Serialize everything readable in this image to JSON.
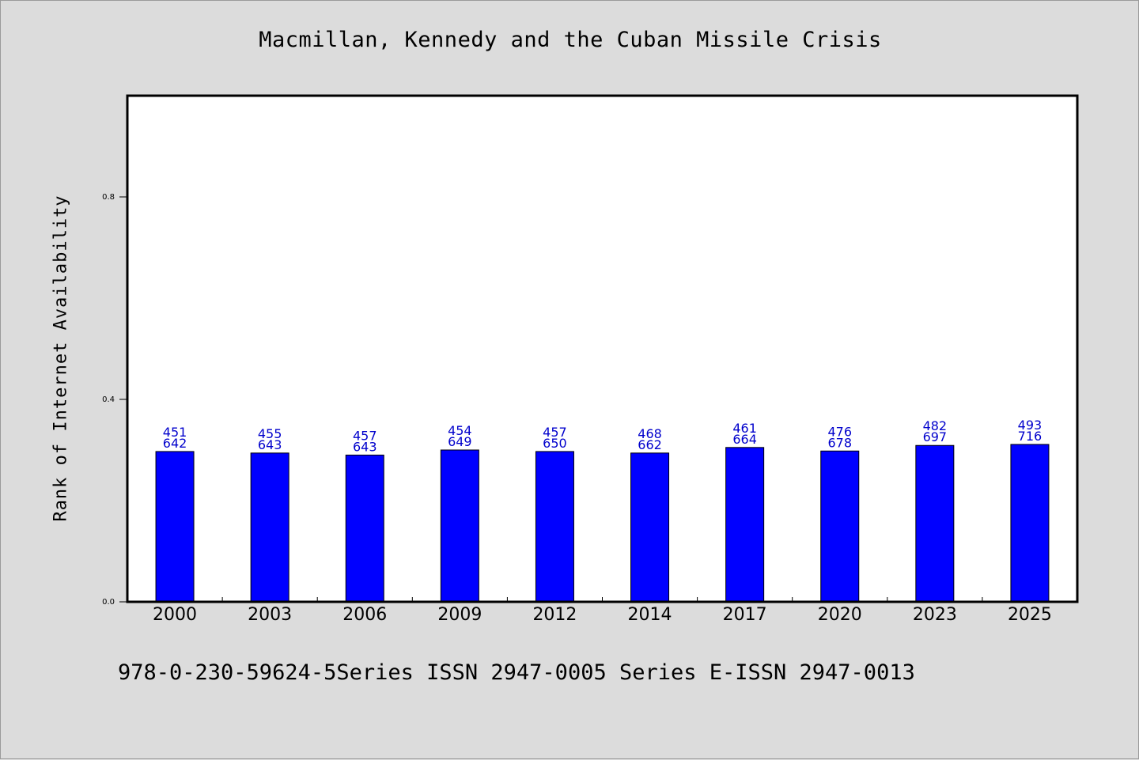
{
  "chart_data": {
    "type": "bar",
    "title": "Macmillan, Kennedy and the Cuban Missile Crisis",
    "xlabel": "",
    "ylabel": "Rank of Internet Availability",
    "categories": [
      "2000",
      "2003",
      "2006",
      "2009",
      "2012",
      "2014",
      "2017",
      "2020",
      "2023",
      "2025"
    ],
    "values": [
      0.297,
      0.294,
      0.29,
      0.3,
      0.297,
      0.294,
      0.305,
      0.298,
      0.309,
      0.311
    ],
    "bar_labels_top": [
      "451",
      "455",
      "457",
      "454",
      "457",
      "468",
      "461",
      "476",
      "482",
      "493"
    ],
    "bar_labels_bottom": [
      "642",
      "643",
      "643",
      "649",
      "650",
      "662",
      "664",
      "678",
      "697",
      "716"
    ],
    "ylim": [
      0,
      1.0
    ],
    "yticks": [
      0.0,
      0.4,
      0.8
    ],
    "ytick_labels": [
      "0.0",
      "0.4",
      "0.8"
    ],
    "grid": false,
    "colors": {
      "bar": "#0000ff",
      "bar_label": "#0000cc",
      "background": "#dcdcdc",
      "plot_background": "#ffffff"
    }
  },
  "footer": {
    "text": "978-0-230-59624-5Series ISSN 2947-0005 Series E-ISSN 2947-0013"
  }
}
